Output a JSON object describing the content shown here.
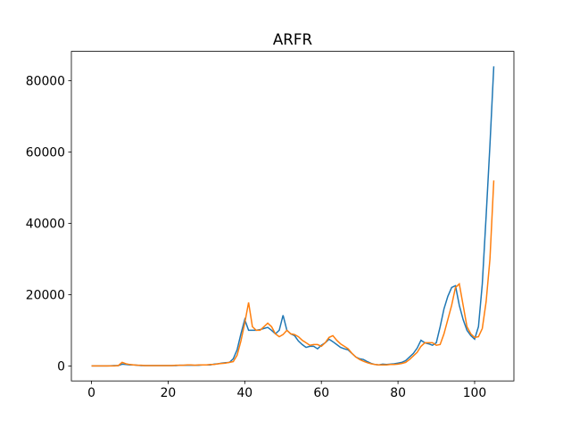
{
  "chart_data": {
    "type": "line",
    "title": "ARFR",
    "x": [
      0,
      1,
      2,
      3,
      4,
      5,
      6,
      7,
      8,
      9,
      10,
      11,
      12,
      13,
      14,
      15,
      16,
      17,
      18,
      19,
      20,
      21,
      22,
      23,
      24,
      25,
      26,
      27,
      28,
      29,
      30,
      31,
      32,
      33,
      34,
      35,
      36,
      37,
      38,
      39,
      40,
      41,
      42,
      43,
      44,
      45,
      46,
      47,
      48,
      49,
      50,
      51,
      52,
      53,
      54,
      55,
      56,
      57,
      58,
      59,
      60,
      61,
      62,
      63,
      64,
      65,
      66,
      67,
      68,
      69,
      70,
      71,
      72,
      73,
      74,
      75,
      76,
      77,
      78,
      79,
      80,
      81,
      82,
      83,
      84,
      85,
      86,
      87,
      88,
      89,
      90,
      91,
      92,
      93,
      94,
      95,
      96,
      97,
      98,
      99,
      100,
      101,
      102,
      103,
      104,
      105
    ],
    "series": [
      {
        "color": "#1f77b4",
        "values": [
          0,
          0,
          0,
          0,
          0,
          50,
          100,
          100,
          500,
          400,
          300,
          300,
          200,
          100,
          100,
          100,
          100,
          100,
          100,
          100,
          100,
          100,
          100,
          200,
          200,
          200,
          200,
          200,
          200,
          300,
          300,
          300,
          500,
          600,
          800,
          900,
          1000,
          2000,
          4500,
          9000,
          13000,
          10000,
          10000,
          10000,
          10200,
          10500,
          10800,
          10000,
          9000,
          10000,
          14200,
          10000,
          9000,
          8500,
          7000,
          6000,
          5200,
          5500,
          5500,
          4800,
          5800,
          6500,
          7500,
          6800,
          6000,
          5200,
          4800,
          4500,
          3500,
          2500,
          2000,
          1800,
          1200,
          700,
          400,
          300,
          500,
          400,
          500,
          600,
          800,
          1000,
          1500,
          2500,
          3500,
          5000,
          7200,
          6500,
          6200,
          5800,
          6500,
          11000,
          16000,
          19500,
          22000,
          22500,
          17000,
          13000,
          10000,
          8500,
          7500,
          11000,
          23000,
          42000,
          62000,
          84000
        ]
      },
      {
        "color": "#ff7f0e",
        "values": [
          0,
          0,
          0,
          0,
          0,
          0,
          0,
          100,
          1000,
          600,
          400,
          300,
          200,
          200,
          100,
          100,
          100,
          100,
          100,
          100,
          100,
          100,
          200,
          200,
          200,
          300,
          300,
          200,
          300,
          300,
          300,
          400,
          400,
          600,
          700,
          800,
          1000,
          1200,
          3000,
          7000,
          12000,
          17800,
          11000,
          10000,
          10000,
          11000,
          12000,
          11000,
          9000,
          8200,
          8800,
          10000,
          9000,
          8800,
          8200,
          7200,
          6500,
          5800,
          6000,
          6000,
          5500,
          6500,
          8000,
          8500,
          7200,
          6200,
          5500,
          4800,
          3500,
          2500,
          1800,
          1300,
          900,
          600,
          400,
          300,
          300,
          300,
          400,
          400,
          500,
          700,
          1000,
          1800,
          2800,
          3800,
          5500,
          6500,
          6500,
          6500,
          5800,
          6000,
          9000,
          13000,
          17000,
          22000,
          23000,
          17000,
          11000,
          9000,
          8000,
          8200,
          10500,
          18000,
          30000,
          52000
        ]
      }
    ],
    "xlim": [
      -5.25,
      110.25
    ],
    "xticks": [
      0,
      20,
      40,
      60,
      80,
      100
    ],
    "ylim": [
      -4200,
      88200
    ],
    "yticks": [
      0,
      20000,
      40000,
      60000,
      80000
    ]
  }
}
